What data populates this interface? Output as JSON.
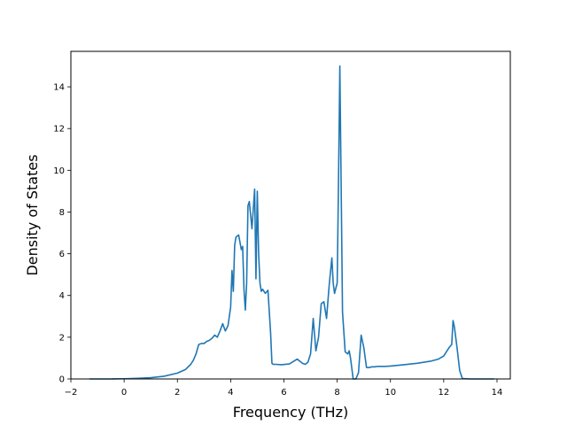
{
  "chart_data": {
    "type": "line",
    "title": "",
    "xlabel": "Frequency (THz)",
    "ylabel": "Density of States",
    "xlim": [
      -2,
      14.5
    ],
    "ylim": [
      0,
      15.7
    ],
    "x_ticks": [
      -2,
      0,
      2,
      4,
      6,
      8,
      10,
      12,
      14
    ],
    "y_ticks": [
      0,
      2,
      4,
      6,
      8,
      10,
      12,
      14
    ],
    "x_tick_labels": [
      "−2",
      "0",
      "2",
      "4",
      "6",
      "8",
      "10",
      "12",
      "14"
    ],
    "y_tick_labels": [
      "0",
      "2",
      "4",
      "6",
      "8",
      "10",
      "12",
      "14"
    ],
    "grid": false,
    "series": [
      {
        "color": "#1f77b4",
        "x": [
          -1.3,
          -0.5,
          0.0,
          0.5,
          1.0,
          1.5,
          2.0,
          2.3,
          2.5,
          2.6,
          2.7,
          2.8,
          2.9,
          3.0,
          3.1,
          3.2,
          3.3,
          3.4,
          3.5,
          3.6,
          3.7,
          3.8,
          3.9,
          4.0,
          4.05,
          4.1,
          4.15,
          4.2,
          4.3,
          4.4,
          4.45,
          4.5,
          4.55,
          4.6,
          4.65,
          4.7,
          4.8,
          4.9,
          4.95,
          5.0,
          5.05,
          5.1,
          5.15,
          5.2,
          5.3,
          5.4,
          5.5,
          5.55,
          5.6,
          5.7,
          5.9,
          6.2,
          6.5,
          6.7,
          6.8,
          6.9,
          7.0,
          7.1,
          7.2,
          7.3,
          7.4,
          7.5,
          7.6,
          7.7,
          7.8,
          7.85,
          7.9,
          8.0,
          8.05,
          8.1,
          8.2,
          8.3,
          8.4,
          8.45,
          8.5,
          8.6,
          8.7,
          8.8,
          8.9,
          9.0,
          9.1,
          9.2,
          9.3,
          9.4,
          9.5,
          9.8,
          10.0,
          10.5,
          11.0,
          11.5,
          11.8,
          12.0,
          12.1,
          12.2,
          12.3,
          12.35,
          12.4,
          12.5,
          12.6,
          12.7,
          13.0,
          13.5,
          13.9
        ],
        "y": [
          0.0,
          0.0,
          0.01,
          0.03,
          0.06,
          0.13,
          0.28,
          0.45,
          0.7,
          0.9,
          1.2,
          1.65,
          1.7,
          1.7,
          1.8,
          1.85,
          1.95,
          2.1,
          2.0,
          2.3,
          2.65,
          2.3,
          2.55,
          3.45,
          5.2,
          4.2,
          6.4,
          6.8,
          6.9,
          6.2,
          6.35,
          4.3,
          3.3,
          4.6,
          8.3,
          8.5,
          7.2,
          9.1,
          4.8,
          9.0,
          6.0,
          4.6,
          4.2,
          4.3,
          4.1,
          4.25,
          2.2,
          0.75,
          0.7,
          0.7,
          0.68,
          0.72,
          0.95,
          0.75,
          0.7,
          0.8,
          1.2,
          2.9,
          1.35,
          2.0,
          3.6,
          3.7,
          2.9,
          4.5,
          5.8,
          4.6,
          4.1,
          4.6,
          9.5,
          15.0,
          3.2,
          1.3,
          1.2,
          1.35,
          1.0,
          0.0,
          0.0,
          0.3,
          2.1,
          1.5,
          0.55,
          0.55,
          0.58,
          0.58,
          0.6,
          0.6,
          0.62,
          0.68,
          0.75,
          0.85,
          0.95,
          1.1,
          1.3,
          1.5,
          1.65,
          2.8,
          2.5,
          1.5,
          0.4,
          0.02,
          0.0,
          0.0,
          0.0
        ]
      }
    ]
  }
}
